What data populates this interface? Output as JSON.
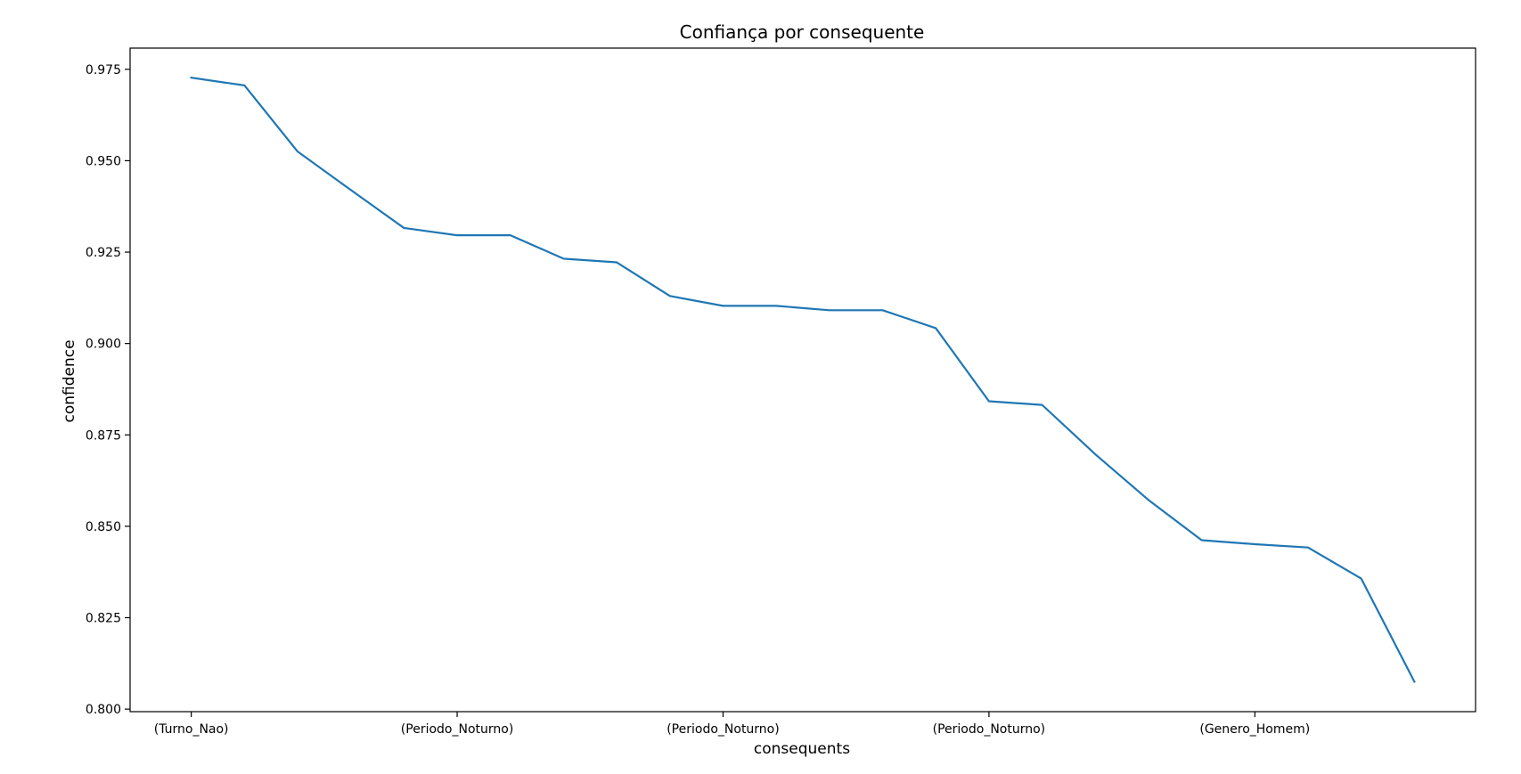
{
  "chart_data": {
    "type": "line",
    "title": "Confiança por consequente",
    "xlabel": "consequents",
    "ylabel": "confidence",
    "x": [
      0,
      1,
      2,
      3,
      4,
      5,
      6,
      7,
      8,
      9,
      10,
      11,
      12,
      13,
      14,
      15,
      16,
      17,
      18,
      19,
      20,
      21,
      22,
      23
    ],
    "x_tick_positions": [
      0,
      5,
      10,
      15,
      20
    ],
    "x_tick_labels": [
      "(Turno_Nao)",
      "(Periodo_Noturno)",
      "(Periodo_Noturno)",
      "(Periodo_Noturno)",
      "(Genero_Homem)"
    ],
    "series": [
      {
        "values": [
          0.9727,
          0.9706,
          0.9525,
          0.942,
          0.9316,
          0.9296,
          0.9296,
          0.9232,
          0.9222,
          0.913,
          0.9103,
          0.9103,
          0.9091,
          0.9091,
          0.9042,
          0.8842,
          0.8832,
          0.8697,
          0.8572,
          0.8462,
          0.8451,
          0.8442,
          0.8357,
          0.8075
        ],
        "color": "#1f77b4"
      }
    ],
    "xlim": [
      -1.15,
      24.15
    ],
    "ylim": [
      0.7993,
      0.9808
    ],
    "y_ticks": [
      0.8,
      0.825,
      0.85,
      0.875,
      0.9,
      0.925,
      0.95,
      0.975
    ],
    "y_tick_labels": [
      "0.800",
      "0.825",
      "0.850",
      "0.875",
      "0.900",
      "0.925",
      "0.950",
      "0.975"
    ],
    "grid": false,
    "legend": "none"
  }
}
